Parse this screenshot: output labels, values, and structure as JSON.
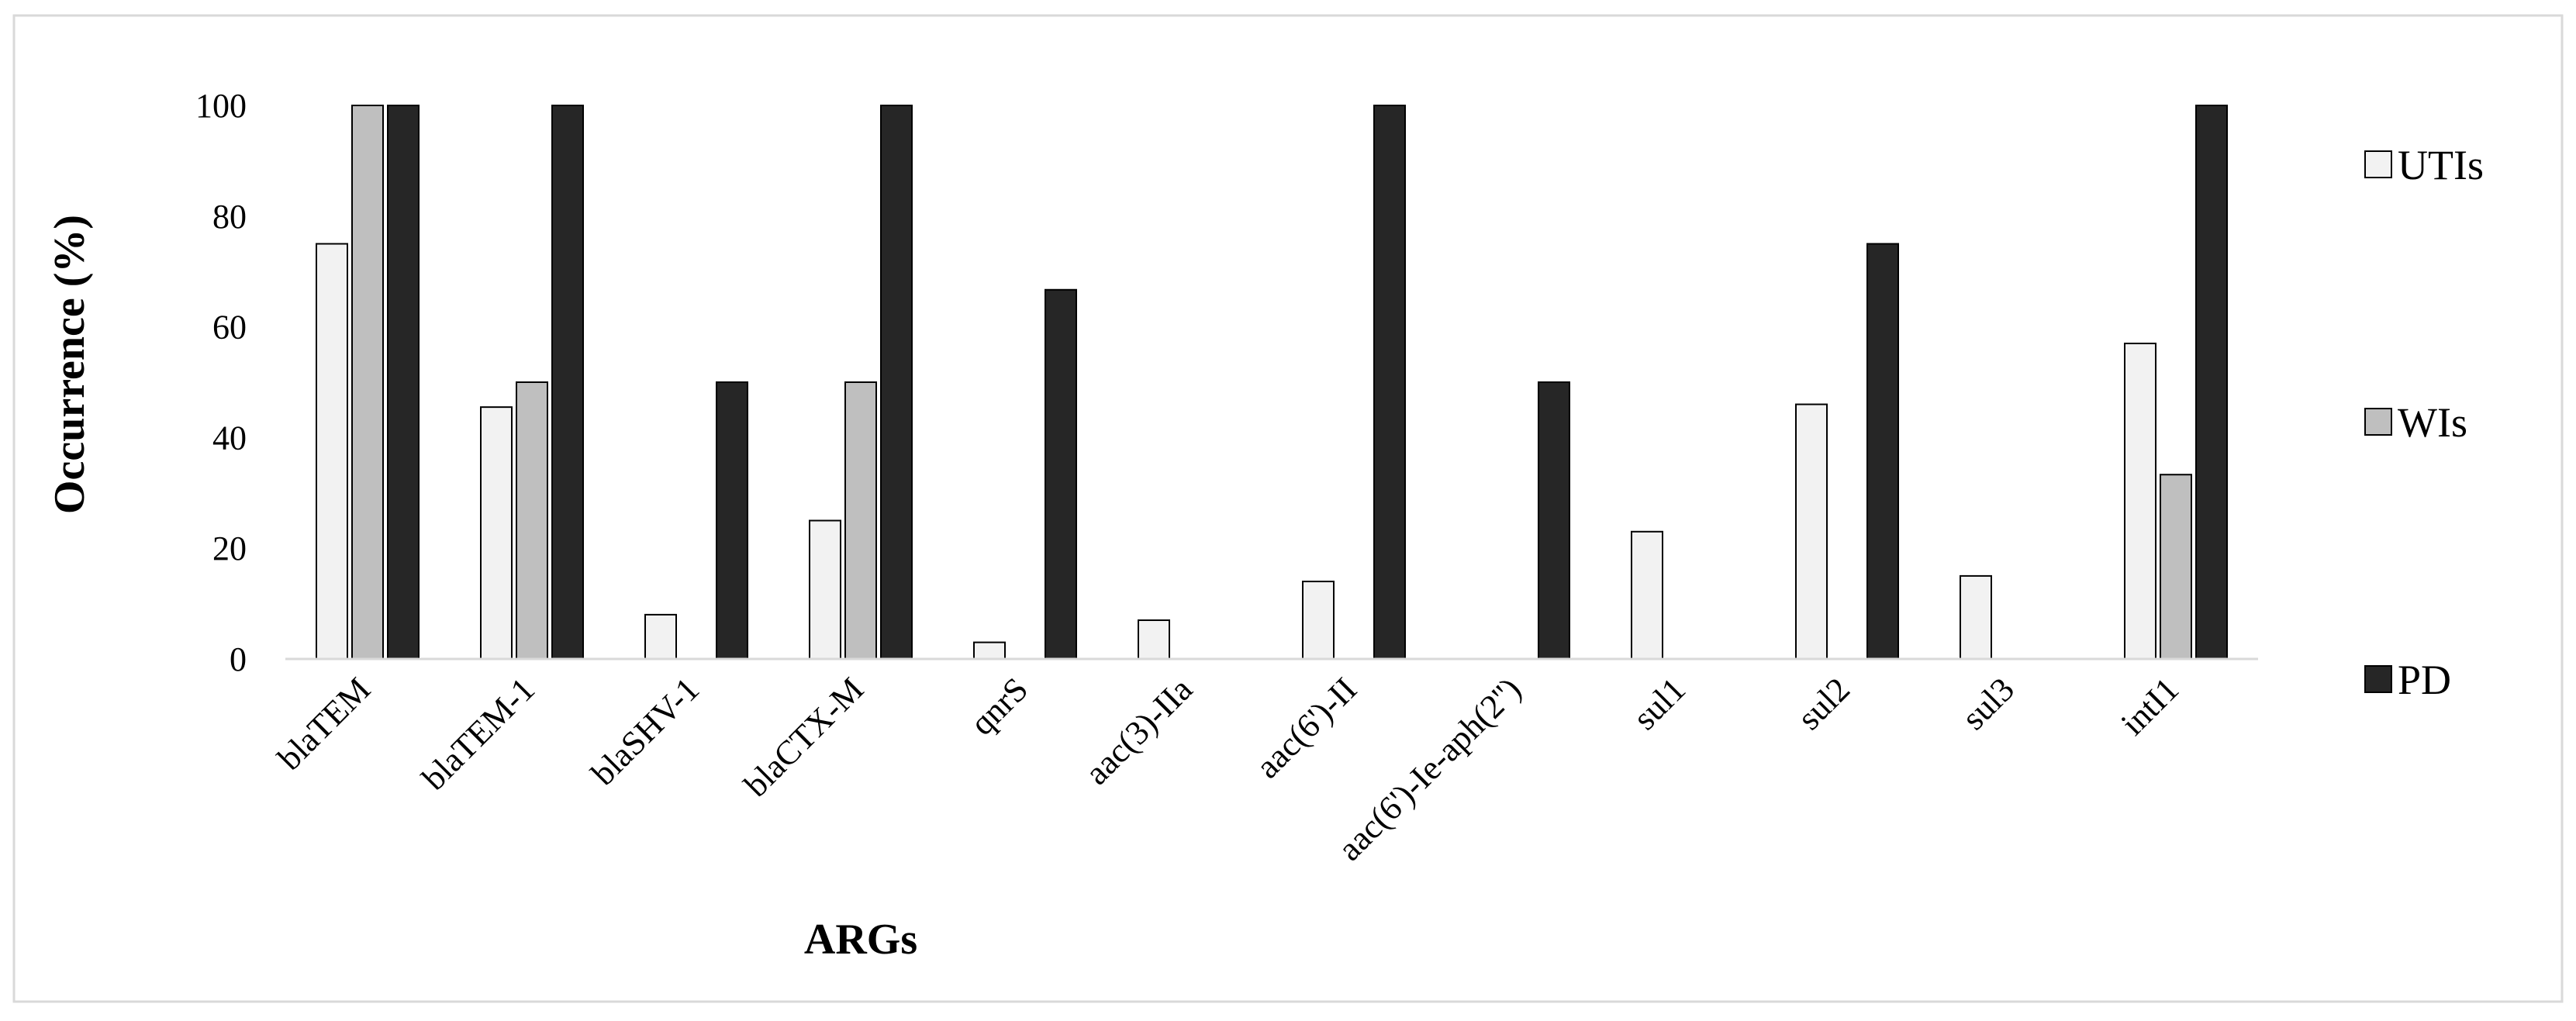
{
  "chart_data": {
    "type": "bar",
    "title": "",
    "xlabel": "ARGs",
    "ylabel": "Occurrence (%)",
    "ylim": [
      0,
      100
    ],
    "yticks": [
      0,
      20,
      40,
      60,
      80,
      100
    ],
    "grid": false,
    "legend_position": "right",
    "categories": [
      "blaTEM",
      "blaTEM-1",
      "blaSHV-1",
      "blaCTX-M",
      "qnrS",
      "aac(3)-IIa",
      "aac(6')-II",
      "aac(6')-Ie-aph(2'')",
      "sul1",
      "sul2",
      "sul3",
      "intI1"
    ],
    "series": [
      {
        "name": "UTIs",
        "color": "#f2f2f2",
        "values": [
          75,
          45.5,
          8,
          25,
          3,
          7,
          14,
          0,
          23,
          46,
          15,
          57
        ]
      },
      {
        "name": "WIs",
        "color": "#bfbfbf",
        "values": [
          100,
          50,
          0,
          50,
          0,
          0,
          0,
          0,
          0,
          0,
          0,
          33.3
        ]
      },
      {
        "name": "PD",
        "color": "#262626",
        "values": [
          100,
          100,
          50,
          100,
          66.7,
          0,
          100,
          50,
          0,
          75,
          0,
          100
        ]
      }
    ]
  }
}
